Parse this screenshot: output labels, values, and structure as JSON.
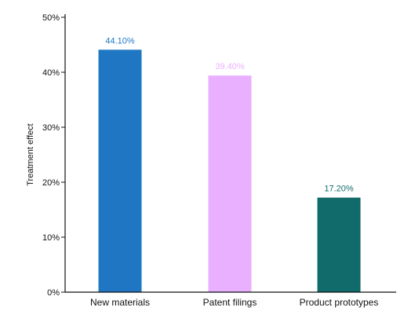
{
  "chart_data": {
    "type": "bar",
    "title": "",
    "xlabel": "",
    "ylabel": "Treatment effect",
    "categories": [
      "New materials",
      "Patent filings",
      "Product prototypes"
    ],
    "values": [
      44.1,
      39.4,
      17.2
    ],
    "data_labels": [
      "44.10%",
      "39.40%",
      "17.20%"
    ],
    "ylim": [
      0,
      50
    ],
    "yticks": [
      0,
      10,
      20,
      30,
      40,
      50
    ],
    "ytick_labels": [
      "0%",
      "10%",
      "20%",
      "30%",
      "40%",
      "50%"
    ],
    "grid": false,
    "legend": "none",
    "colors": [
      "#1f77c4",
      "#e9b0ff",
      "#126b6b"
    ],
    "label_colors": [
      "#1f77c4",
      "#e9b0ff",
      "#126b6b"
    ]
  }
}
